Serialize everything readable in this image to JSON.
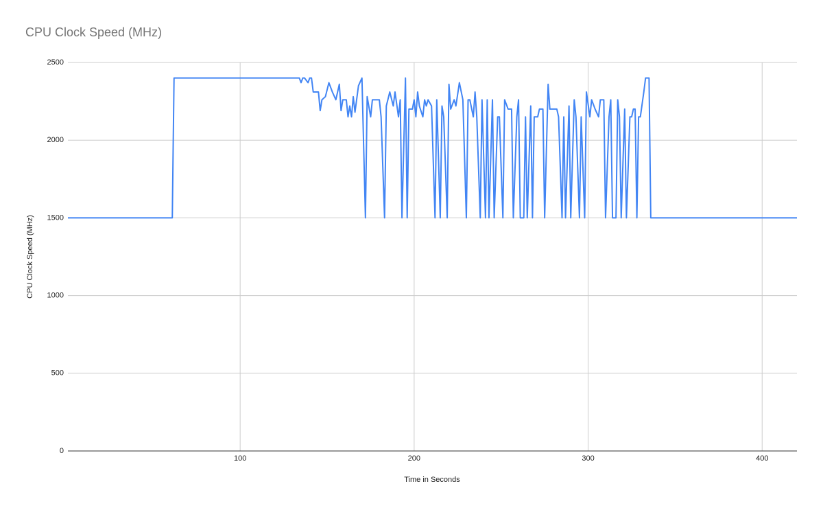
{
  "chart_data": {
    "type": "line",
    "title": "CPU Clock Speed (MHz)",
    "x_label": "Time in Seconds",
    "y_label": "CPU Clock Speed (MHz)",
    "x": [
      1,
      61,
      62,
      134,
      135,
      136,
      137,
      139,
      140,
      141,
      142,
      145,
      146,
      147,
      149,
      151,
      153,
      155,
      157,
      158,
      159,
      161,
      162,
      163,
      164,
      165,
      166,
      168,
      170,
      172,
      173,
      175,
      176,
      178,
      180,
      181,
      183,
      184,
      186,
      188,
      189,
      191,
      192,
      193,
      195,
      196,
      197,
      199,
      200,
      201,
      202,
      203,
      205,
      206,
      207,
      208,
      210,
      212,
      213,
      215,
      216,
      217,
      219,
      220,
      221,
      223,
      224,
      226,
      228,
      230,
      231,
      232,
      234,
      235,
      236,
      238,
      239,
      241,
      242,
      243,
      245,
      246,
      248,
      249,
      251,
      252,
      254,
      256,
      257,
      259,
      260,
      261,
      263,
      264,
      265,
      267,
      268,
      269,
      271,
      272,
      274,
      275,
      277,
      278,
      280,
      282,
      283,
      285,
      286,
      287,
      289,
      290,
      292,
      293,
      295,
      296,
      298,
      299,
      301,
      302,
      304,
      306,
      307,
      309,
      310,
      312,
      313,
      314,
      316,
      317,
      318,
      319,
      321,
      322,
      324,
      325,
      326,
      327,
      328,
      329,
      330,
      332,
      333,
      335,
      336,
      420
    ],
    "series": [
      {
        "name": "CPU Clock Speed (MHz)",
        "color": "#4285f4",
        "values": [
          1500,
          1500,
          2400,
          2400,
          2370,
          2400,
          2400,
          2370,
          2400,
          2400,
          2310,
          2310,
          2190,
          2260,
          2280,
          2370,
          2310,
          2260,
          2360,
          2190,
          2260,
          2260,
          2150,
          2220,
          2150,
          2280,
          2180,
          2350,
          2400,
          1500,
          2280,
          2150,
          2260,
          2260,
          2260,
          2150,
          1500,
          2220,
          2310,
          2220,
          2310,
          2150,
          2260,
          1500,
          2400,
          1500,
          2200,
          2200,
          2260,
          2150,
          2310,
          2220,
          2150,
          2260,
          2220,
          2260,
          2220,
          1500,
          2260,
          1500,
          2220,
          2150,
          1500,
          2360,
          2200,
          2260,
          2220,
          2370,
          2260,
          1500,
          2260,
          2260,
          2150,
          2310,
          2150,
          1500,
          2260,
          1500,
          2260,
          1500,
          2260,
          1500,
          2150,
          2150,
          1500,
          2260,
          2200,
          2200,
          1500,
          2150,
          2260,
          1500,
          1500,
          2150,
          1500,
          2220,
          1500,
          2150,
          2150,
          2200,
          2200,
          1500,
          2360,
          2200,
          2200,
          2200,
          2150,
          1500,
          2150,
          1500,
          2220,
          1500,
          2260,
          2150,
          1500,
          2150,
          1500,
          2310,
          2150,
          2260,
          2200,
          2150,
          2260,
          2260,
          1500,
          2150,
          2260,
          1500,
          1500,
          2260,
          2150,
          1500,
          2200,
          1500,
          2150,
          2150,
          2200,
          2200,
          1500,
          2150,
          2150,
          2310,
          2400,
          2400,
          1500,
          1500
        ]
      }
    ],
    "xlim": [
      1,
      420
    ],
    "ylim": [
      0,
      2500
    ],
    "xticks": [
      100,
      200,
      300,
      400
    ],
    "yticks": [
      0,
      500,
      1000,
      1500,
      2000,
      2500
    ],
    "grid": true
  }
}
